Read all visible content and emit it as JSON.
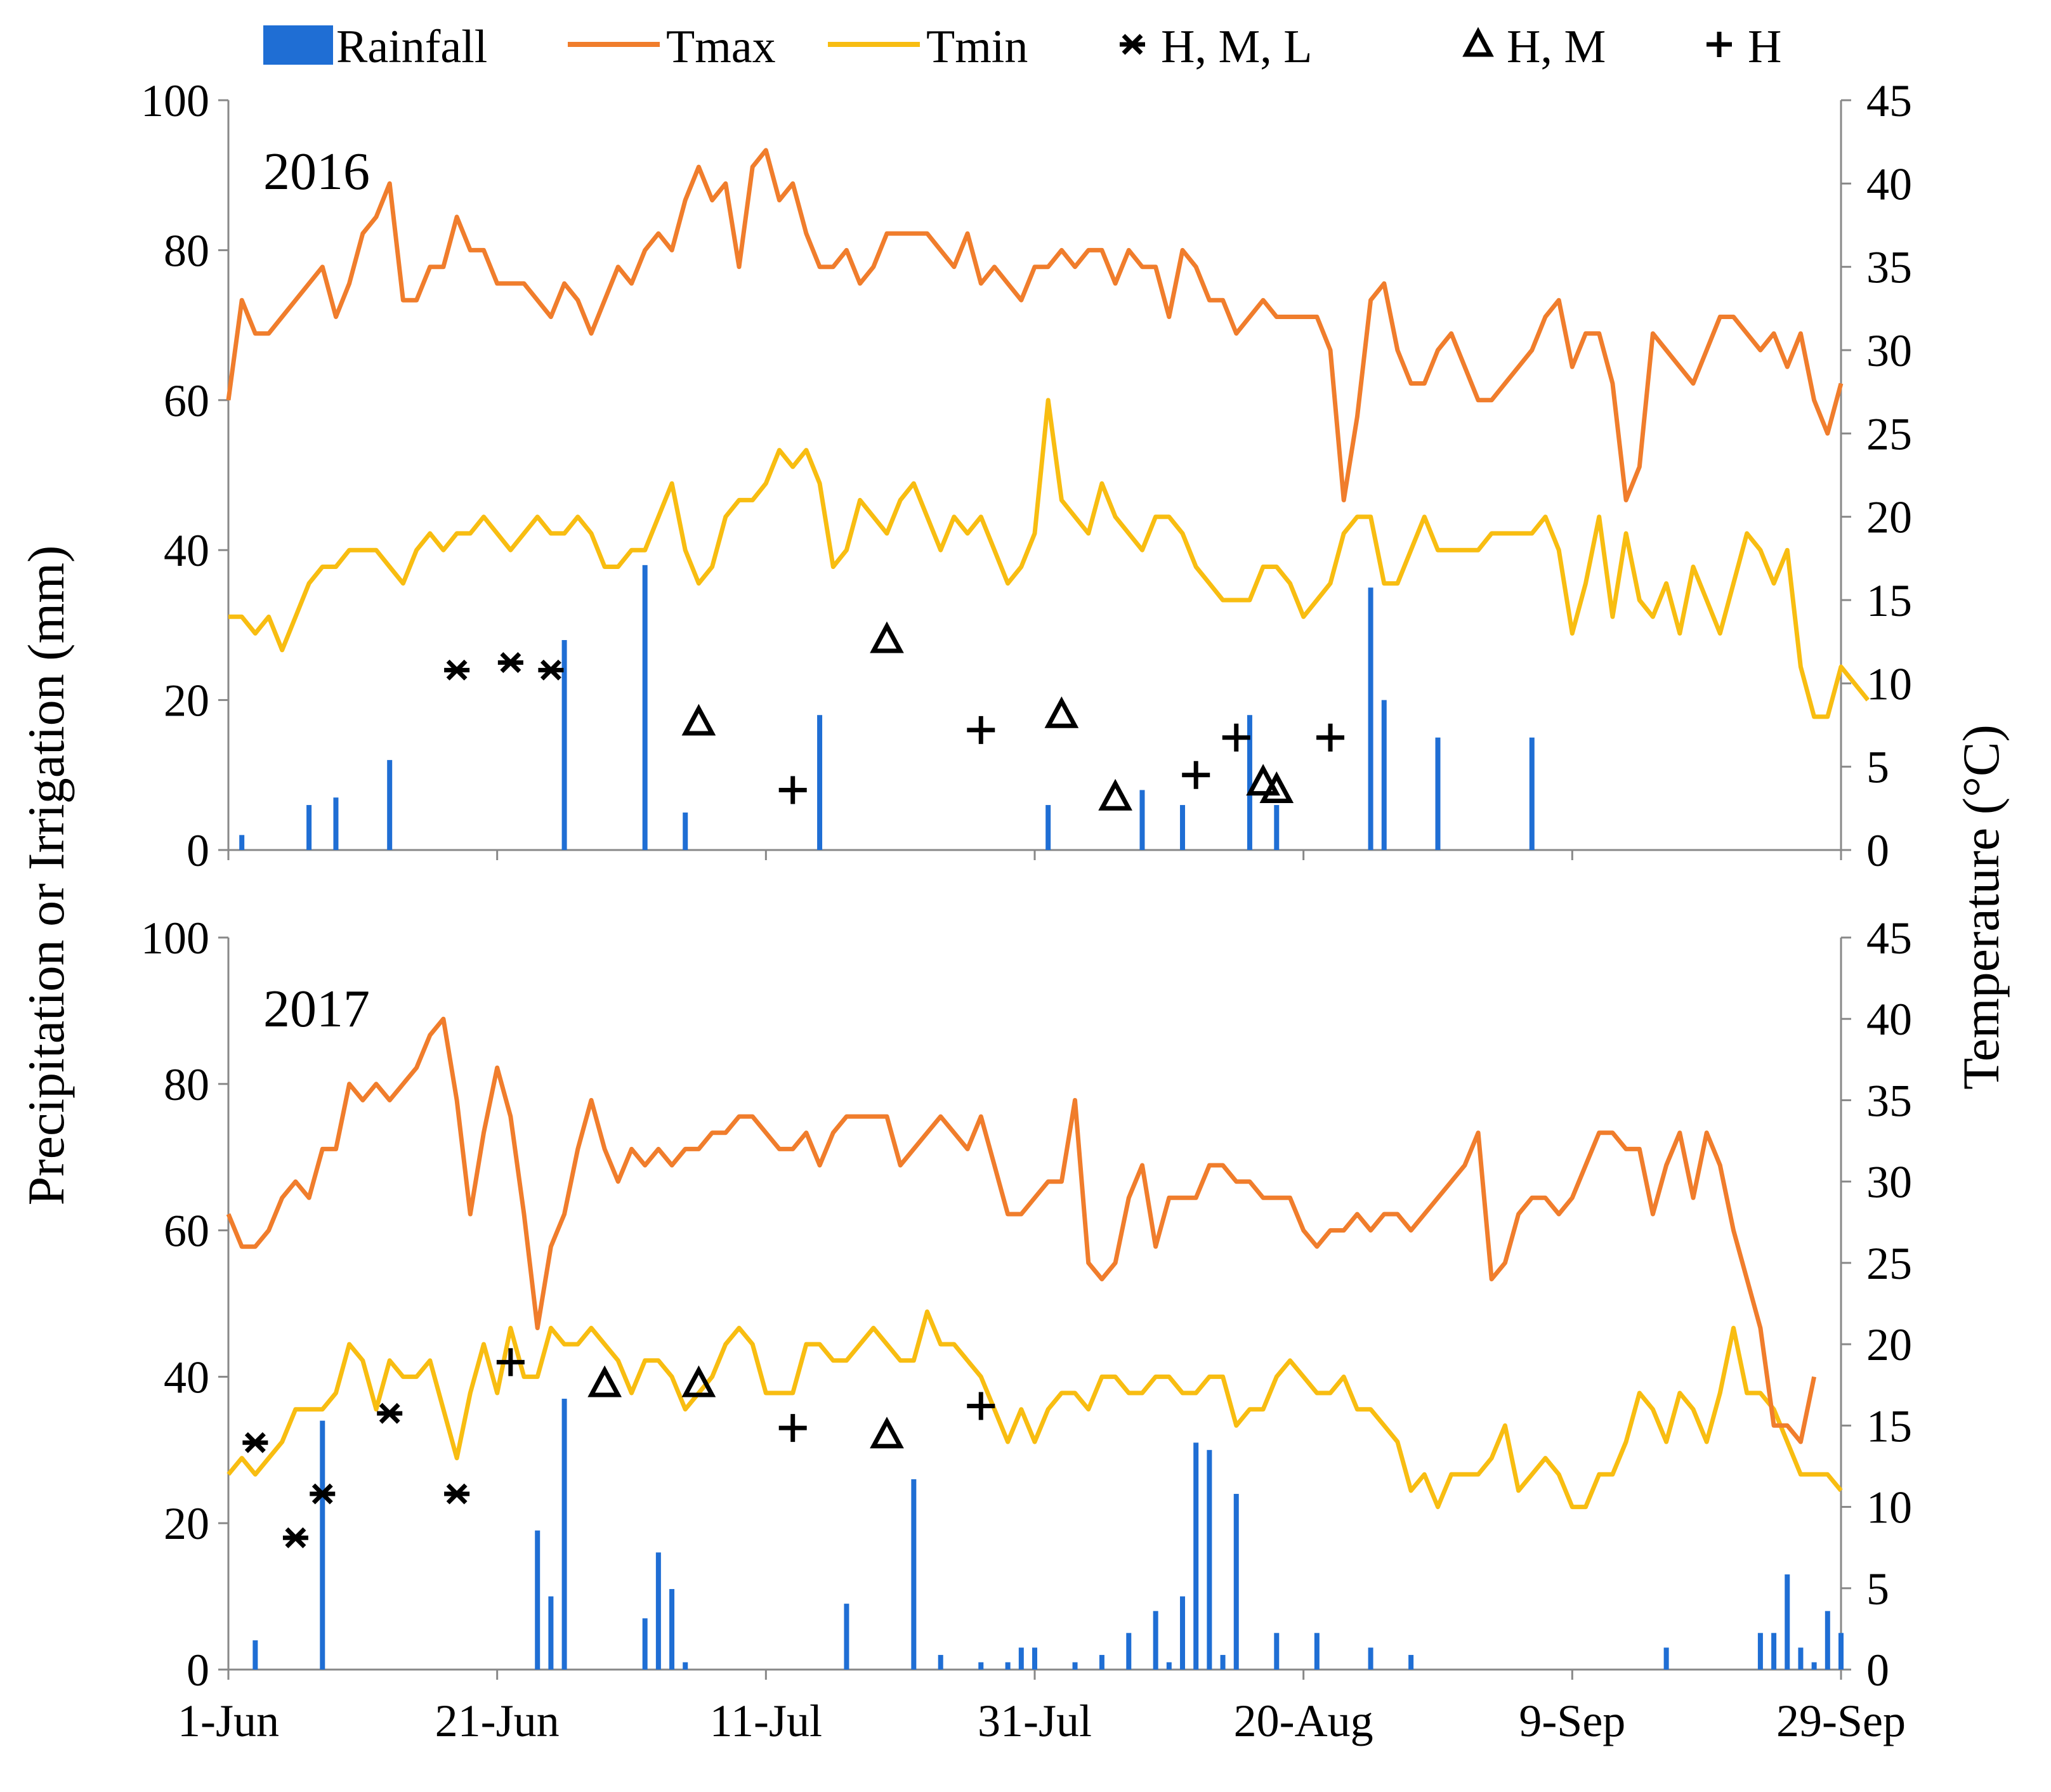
{
  "legend": {
    "rainfall": "Rainfall",
    "tmax": "Tmax",
    "tmin": "Tmin",
    "irr_hml": "H, M,  L",
    "irr_hm": "H, M",
    "irr_h": "H"
  },
  "axes": {
    "left_label": "Precipitation or Irrigation (mm)",
    "right_label": "Temperature (°C)",
    "left_ticks": [
      "0",
      "20",
      "40",
      "60",
      "80",
      "100"
    ],
    "right_ticks": [
      "0",
      "5",
      "10",
      "15",
      "20",
      "25",
      "30",
      "35",
      "40",
      "45"
    ],
    "x_ticks": [
      "1-Jun",
      "21-Jun",
      "11-Jul",
      "31-Jul",
      "20-Aug",
      "9-Sep",
      "29-Sep"
    ]
  },
  "colors": {
    "rainfall": "#1f6ed4",
    "tmax": "#f07d2c",
    "tmin": "#f8bd11",
    "markers": "#000000"
  },
  "chart_data": [
    {
      "type": "bar+line+scatter",
      "title": "2016",
      "xlabel": "",
      "ylabel": "Precipitation or Irrigation (mm)",
      "y2label": "Temperature (°C)",
      "xlim": [
        0,
        120
      ],
      "ylim": [
        0,
        100
      ],
      "y2lim": [
        0,
        45
      ],
      "x_unit": "days since 1-Jun",
      "rainfall": [
        [
          1,
          2
        ],
        [
          6,
          6
        ],
        [
          8,
          7
        ],
        [
          12,
          12
        ],
        [
          25,
          28
        ],
        [
          31,
          38
        ],
        [
          34,
          5
        ],
        [
          44,
          18
        ],
        [
          61,
          6
        ],
        [
          68,
          8
        ],
        [
          71,
          6
        ],
        [
          76,
          18
        ],
        [
          78,
          6
        ],
        [
          85,
          35
        ],
        [
          86,
          20
        ],
        [
          90,
          15
        ],
        [
          97,
          15
        ]
      ],
      "tmax": [
        27,
        33,
        31,
        31,
        32,
        33,
        34,
        35,
        32,
        34,
        37,
        38,
        40,
        33,
        33,
        35,
        35,
        38,
        36,
        36,
        34,
        34,
        34,
        33,
        32,
        34,
        33,
        31,
        33,
        35,
        34,
        36,
        37,
        36,
        39,
        41,
        39,
        40,
        35,
        41,
        42,
        39,
        40,
        37,
        35,
        35,
        36,
        34,
        35,
        37,
        37,
        37,
        37,
        36,
        35,
        37,
        34,
        35,
        34,
        33,
        35,
        35,
        36,
        35,
        36,
        36,
        34,
        36,
        35,
        35,
        32,
        36,
        35,
        33,
        33,
        31,
        32,
        33,
        32,
        32,
        32,
        32,
        30,
        21,
        26,
        33,
        34,
        30,
        28,
        28,
        30,
        31,
        29,
        27,
        27,
        28,
        29,
        30,
        32,
        33,
        29,
        31,
        31,
        28,
        21,
        23,
        31,
        30,
        29,
        28,
        30,
        32,
        32,
        31,
        30,
        31,
        29,
        31,
        27,
        25,
        28
      ],
      "tmin": [
        14,
        14,
        13,
        14,
        12,
        14,
        16,
        17,
        17,
        18,
        18,
        18,
        17,
        16,
        18,
        19,
        18,
        19,
        19,
        20,
        19,
        18,
        19,
        20,
        19,
        19,
        20,
        19,
        17,
        17,
        18,
        18,
        20,
        22,
        18,
        16,
        17,
        20,
        21,
        21,
        22,
        24,
        23,
        24,
        22,
        17,
        18,
        21,
        20,
        19,
        21,
        22,
        20,
        18,
        20,
        19,
        20,
        18,
        16,
        17,
        19,
        27,
        21,
        20,
        19,
        22,
        20,
        19,
        18,
        20,
        20,
        19,
        17,
        16,
        15,
        15,
        15,
        17,
        17,
        16,
        14,
        15,
        16,
        19,
        20,
        20,
        16,
        16,
        18,
        20,
        18,
        18,
        18,
        18,
        19,
        19,
        19,
        19,
        20,
        18,
        13,
        16,
        20,
        14,
        19,
        15,
        14,
        16,
        13,
        17,
        15,
        13,
        16,
        19,
        18,
        16,
        18,
        11,
        8,
        8,
        11,
        10,
        9
      ],
      "irrigation_HML": [
        [
          17,
          24
        ],
        [
          21,
          25
        ],
        [
          24,
          24
        ]
      ],
      "irrigation_HM": [
        [
          35,
          17
        ],
        [
          49,
          28
        ],
        [
          62,
          18
        ],
        [
          66,
          7
        ],
        [
          77,
          9
        ],
        [
          78,
          8
        ]
      ],
      "irrigation_H": [
        [
          42,
          8
        ],
        [
          56,
          16
        ],
        [
          72,
          10
        ],
        [
          75,
          15
        ],
        [
          82,
          15
        ]
      ]
    },
    {
      "type": "bar+line+scatter",
      "title": "2017",
      "xlabel": "",
      "ylabel": "Precipitation or Irrigation (mm)",
      "y2label": "Temperature (°C)",
      "xlim": [
        0,
        120
      ],
      "ylim": [
        0,
        100
      ],
      "y2lim": [
        0,
        45
      ],
      "x_unit": "days since 1-Jun",
      "rainfall": [
        [
          2,
          4
        ],
        [
          7,
          34
        ],
        [
          23,
          19
        ],
        [
          24,
          10
        ],
        [
          25,
          37
        ],
        [
          31,
          7
        ],
        [
          32,
          16
        ],
        [
          33,
          11
        ],
        [
          34,
          1
        ],
        [
          46,
          9
        ],
        [
          51,
          26
        ],
        [
          53,
          2
        ],
        [
          56,
          1
        ],
        [
          58,
          1
        ],
        [
          59,
          3
        ],
        [
          60,
          3
        ],
        [
          63,
          1
        ],
        [
          65,
          2
        ],
        [
          67,
          5
        ],
        [
          69,
          8
        ],
        [
          70,
          1
        ],
        [
          71,
          10
        ],
        [
          72,
          31
        ],
        [
          73,
          30
        ],
        [
          74,
          2
        ],
        [
          75,
          24
        ],
        [
          78,
          5
        ],
        [
          81,
          5
        ],
        [
          85,
          3
        ],
        [
          88,
          2
        ],
        [
          107,
          3
        ],
        [
          114,
          5
        ],
        [
          115,
          5
        ],
        [
          116,
          13
        ],
        [
          117,
          3
        ],
        [
          118,
          1
        ],
        [
          119,
          8
        ],
        [
          120,
          5
        ]
      ],
      "tmax": [
        28,
        26,
        26,
        27,
        29,
        30,
        29,
        32,
        32,
        36,
        35,
        36,
        35,
        36,
        37,
        39,
        40,
        35,
        28,
        33,
        37,
        34,
        28,
        21,
        26,
        28,
        32,
        35,
        32,
        30,
        32,
        31,
        32,
        31,
        32,
        32,
        33,
        33,
        34,
        34,
        33,
        32,
        32,
        33,
        31,
        33,
        34,
        34,
        34,
        34,
        31,
        32,
        33,
        34,
        33,
        32,
        34,
        31,
        28,
        28,
        29,
        30,
        30,
        35,
        25,
        24,
        25,
        29,
        31,
        26,
        29,
        29,
        29,
        31,
        31,
        30,
        30,
        29,
        29,
        29,
        27,
        26,
        27,
        27,
        28,
        27,
        28,
        28,
        27,
        28,
        29,
        30,
        31,
        33,
        24,
        25,
        28,
        29,
        29,
        28,
        29,
        31,
        33,
        33,
        32,
        32,
        28,
        31,
        33,
        29,
        33,
        31,
        27,
        24,
        21,
        15,
        15,
        14,
        18
      ],
      "tmin": [
        12,
        13,
        12,
        13,
        14,
        16,
        16,
        16,
        17,
        20,
        19,
        16,
        19,
        18,
        18,
        19,
        16,
        13,
        17,
        20,
        17,
        21,
        18,
        18,
        21,
        20,
        20,
        21,
        20,
        19,
        17,
        19,
        19,
        18,
        16,
        17,
        18,
        20,
        21,
        20,
        17,
        17,
        17,
        20,
        20,
        19,
        19,
        20,
        21,
        20,
        19,
        19,
        22,
        20,
        20,
        19,
        18,
        16,
        14,
        16,
        14,
        16,
        17,
        17,
        16,
        18,
        18,
        17,
        17,
        18,
        18,
        17,
        17,
        18,
        18,
        15,
        16,
        16,
        18,
        19,
        18,
        17,
        17,
        18,
        16,
        16,
        15,
        14,
        11,
        12,
        10,
        12,
        12,
        12,
        13,
        15,
        11,
        12,
        13,
        12,
        10,
        10,
        12,
        12,
        14,
        17,
        16,
        14,
        17,
        16,
        14,
        17,
        21,
        17,
        17,
        16,
        14,
        12,
        12,
        12,
        11
      ],
      "irrigation_HML": [
        [
          2,
          31
        ],
        [
          5,
          18
        ],
        [
          7,
          24
        ],
        [
          12,
          35
        ],
        [
          17,
          24
        ]
      ],
      "irrigation_HM": [
        [
          28,
          39
        ],
        [
          35,
          39
        ],
        [
          49,
          32
        ]
      ],
      "irrigation_H": [
        [
          21,
          42
        ],
        [
          42,
          33
        ],
        [
          56,
          36
        ]
      ]
    }
  ]
}
